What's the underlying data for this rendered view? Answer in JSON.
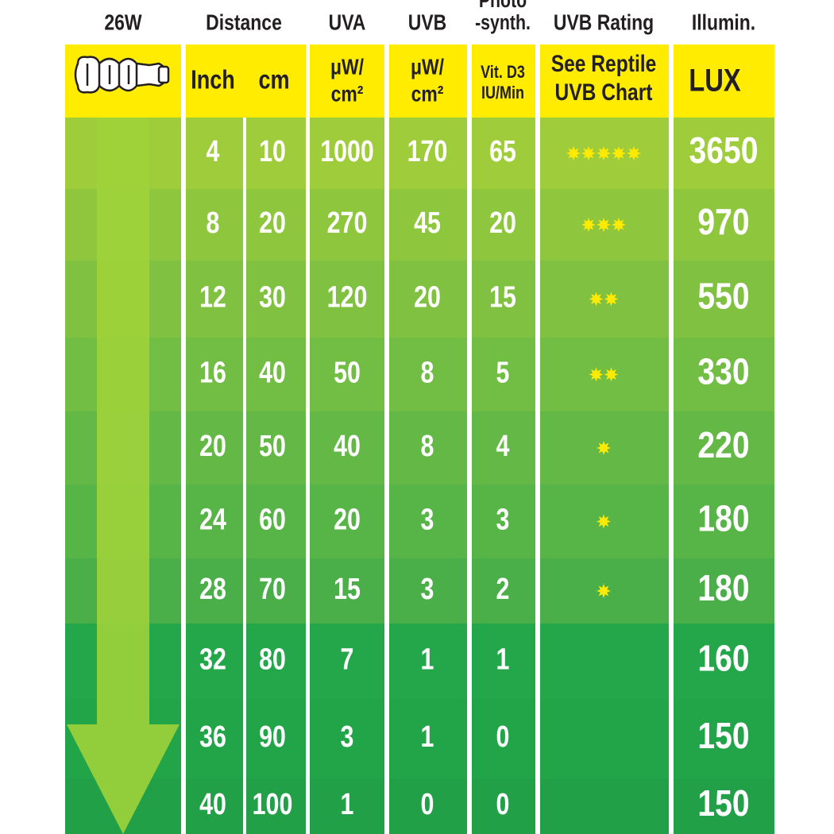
{
  "header": {
    "wattage": "26W",
    "distance": "Distance",
    "uva": "UVA",
    "uvb": "UVB",
    "photosynth": [
      "Photo",
      "-synth."
    ],
    "rating": "UVB Rating",
    "illumination": "Illumin."
  },
  "units": {
    "inch": "Inch",
    "cm": "cm",
    "uva": [
      "μW/",
      "cm²"
    ],
    "uvb": [
      "μW/",
      "cm²"
    ],
    "vitd3": [
      "Vit. D3",
      "IU/Min"
    ],
    "rating": [
      "See Reptile",
      "UVB Chart"
    ],
    "lux": "LUX"
  },
  "rows": [
    [
      4,
      10,
      1000,
      170,
      65,
      5,
      3650
    ],
    [
      8,
      20,
      270,
      45,
      20,
      3,
      970
    ],
    [
      12,
      30,
      120,
      20,
      15,
      2,
      550
    ],
    [
      16,
      40,
      50,
      8,
      5,
      2,
      330
    ],
    [
      20,
      50,
      40,
      8,
      4,
      1,
      220
    ],
    [
      24,
      60,
      20,
      3,
      3,
      1,
      180
    ],
    [
      28,
      70,
      15,
      3,
      2,
      1,
      180
    ],
    [
      32,
      80,
      7,
      1,
      1,
      0,
      160
    ],
    [
      36,
      90,
      3,
      1,
      0,
      0,
      150
    ],
    [
      40,
      100,
      1,
      0,
      0,
      0,
      150
    ]
  ]
}
